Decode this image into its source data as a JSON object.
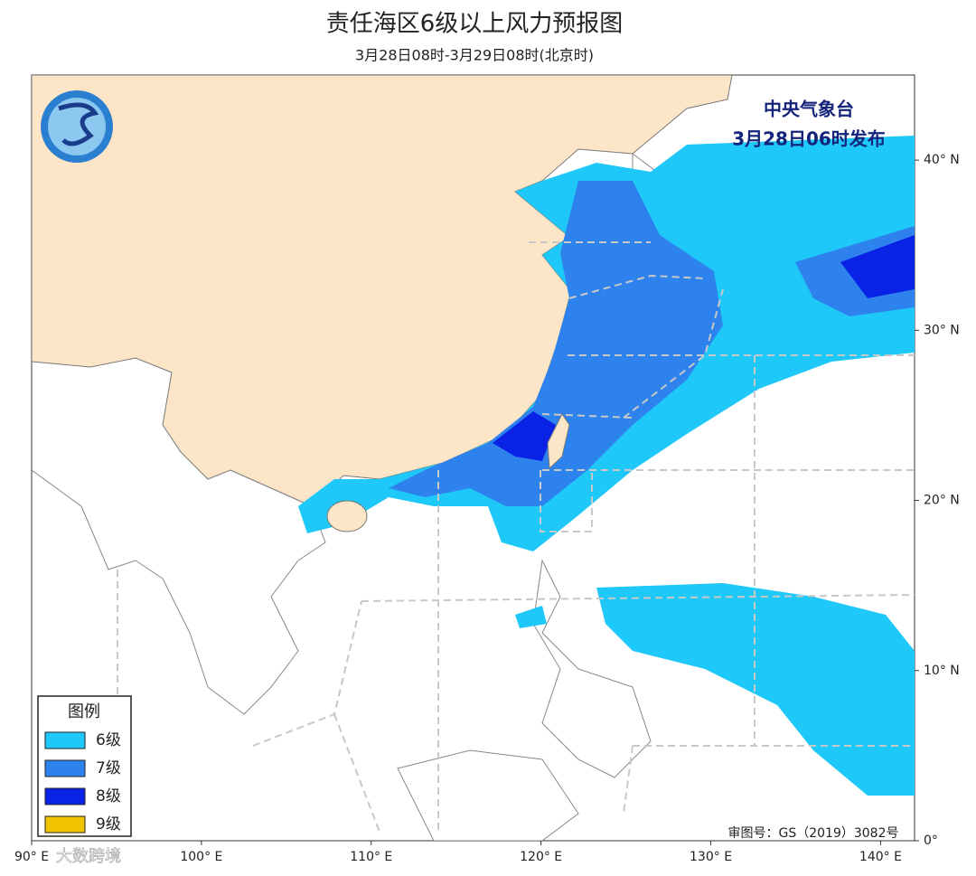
{
  "header": {
    "title": "责任海区6级以上风力预报图",
    "subtitle": "3月28日08时-3月29日08时(北京时)"
  },
  "issuer": {
    "name": "中央气象台",
    "time": "3月28日06时发布"
  },
  "map": {
    "xlim": [
      90,
      142
    ],
    "ylim": [
      0,
      45
    ],
    "xticks": [
      {
        "value": 90,
        "label": "90° E"
      },
      {
        "value": 100,
        "label": "100° E"
      },
      {
        "value": 110,
        "label": "110° E"
      },
      {
        "value": 120,
        "label": "120° E"
      },
      {
        "value": 130,
        "label": "130° E"
      },
      {
        "value": 140,
        "label": "140° E"
      }
    ],
    "yticks": [
      {
        "value": 0,
        "label": "0°"
      },
      {
        "value": 10,
        "label": "10° N"
      },
      {
        "value": 20,
        "label": "20° N"
      },
      {
        "value": 30,
        "label": "30° N"
      },
      {
        "value": 40,
        "label": "40° N"
      }
    ]
  },
  "legend": {
    "title": "图例",
    "items": [
      {
        "label": "6级",
        "color": "#1ec8f8"
      },
      {
        "label": "7级",
        "color": "#2d82ee"
      },
      {
        "label": "8级",
        "color": "#0a22e6"
      },
      {
        "label": "9级",
        "color": "#f5c400"
      }
    ]
  },
  "approval": "审图号：GS（2019）3082号",
  "watermark": "大数跨境"
}
